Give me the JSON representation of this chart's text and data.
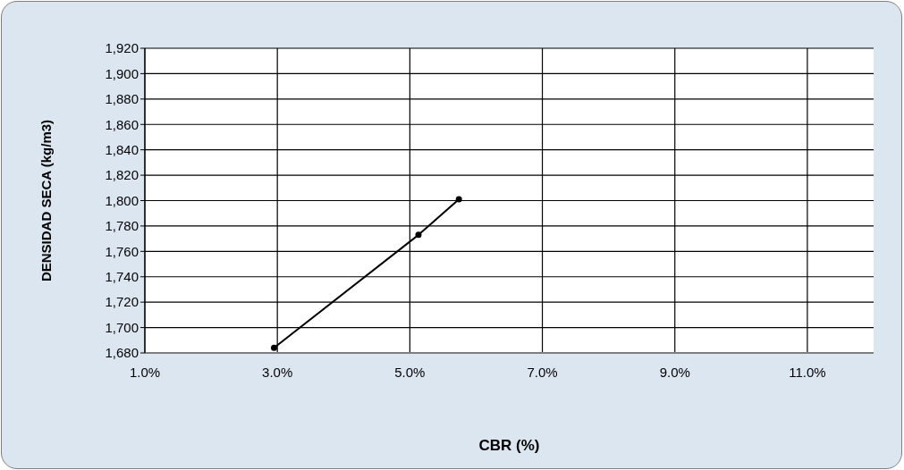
{
  "chart_data": {
    "type": "line",
    "xlabel": "CBR (%)",
    "ylabel": "DENSIDAD SECA (kg/m3)",
    "x": [
      2.95,
      5.13,
      5.74
    ],
    "series": [
      {
        "color": "#000000",
        "values": [
          1684,
          1773,
          1801
        ]
      }
    ],
    "xlim": [
      1,
      12
    ],
    "xticks": [
      {
        "value": 1,
        "label": "1.0%"
      },
      {
        "value": 3,
        "label": "3.0%"
      },
      {
        "value": 5,
        "label": "5.0%"
      },
      {
        "value": 7,
        "label": "7.0%"
      },
      {
        "value": 9,
        "label": "9.0%"
      },
      {
        "value": 11,
        "label": "11.0%"
      }
    ],
    "ylim": [
      1680,
      1920
    ],
    "yticks": [
      {
        "value": 1680,
        "label": "1,680"
      },
      {
        "value": 1700,
        "label": "1,700"
      },
      {
        "value": 1720,
        "label": "1,720"
      },
      {
        "value": 1740,
        "label": "1,740"
      },
      {
        "value": 1760,
        "label": "1,760"
      },
      {
        "value": 1780,
        "label": "1,780"
      },
      {
        "value": 1800,
        "label": "1,800"
      },
      {
        "value": 1820,
        "label": "1,820"
      },
      {
        "value": 1840,
        "label": "1,840"
      },
      {
        "value": 1860,
        "label": "1,860"
      },
      {
        "value": 1880,
        "label": "1,880"
      },
      {
        "value": 1900,
        "label": "1,900"
      },
      {
        "value": 1920,
        "label": "1,920"
      }
    ],
    "grid": true,
    "marker": "circle",
    "line_style": "solid",
    "legend": false
  }
}
